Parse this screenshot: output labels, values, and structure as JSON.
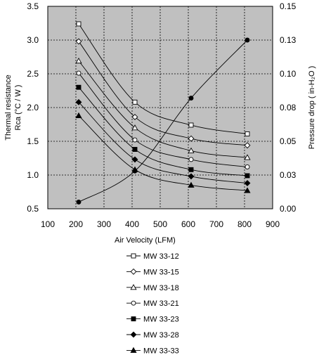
{
  "chart_data": {
    "type": "line",
    "xlabel": "Air Velocity (LFM)",
    "ylabel_left": [
      "Thermal resistance",
      "Rca (°C / W )"
    ],
    "ylabel_right": "Pressure drop ( in-H₂O )",
    "xlim": [
      100,
      900
    ],
    "x_ticks": [
      100,
      200,
      300,
      400,
      500,
      600,
      700,
      800,
      900
    ],
    "ylim_left": [
      0.5,
      3.5
    ],
    "y_ticks_left": [
      "0.5",
      "1.0",
      "1.5",
      "2.0",
      "2.5",
      "3.0",
      "3.5"
    ],
    "ylim_right": [
      0,
      0.15
    ],
    "y_ticks_right": [
      "0.00",
      "0.03",
      "0.05",
      "0.08",
      "0.10",
      "0.13",
      "0.15"
    ],
    "grid": true,
    "plot_background": "#c0c0c0",
    "legend_position": "bottom",
    "series": [
      {
        "name": "MW 33-12",
        "marker": "square-open",
        "axis": "left",
        "x": [
          210,
          410,
          610,
          810
        ],
        "y": [
          3.24,
          2.08,
          1.74,
          1.61
        ]
      },
      {
        "name": "MW 33-15",
        "marker": "diamond-open",
        "axis": "left",
        "x": [
          210,
          410,
          610,
          810
        ],
        "y": [
          2.98,
          1.86,
          1.54,
          1.44
        ]
      },
      {
        "name": "MW 33-18",
        "marker": "triangle-open",
        "axis": "left",
        "x": [
          210,
          410,
          610,
          810
        ],
        "y": [
          2.69,
          1.7,
          1.36,
          1.26
        ]
      },
      {
        "name": "MW 33-21",
        "marker": "circle-open",
        "axis": "left",
        "x": [
          210,
          410,
          610,
          810
        ],
        "y": [
          2.51,
          1.52,
          1.23,
          1.12
        ]
      },
      {
        "name": "MW 33-23",
        "marker": "square-filled",
        "axis": "left",
        "x": [
          210,
          410,
          610,
          810
        ],
        "y": [
          2.3,
          1.38,
          1.08,
          0.99
        ]
      },
      {
        "name": "MW 33-28",
        "marker": "diamond-filled",
        "axis": "left",
        "x": [
          210,
          410,
          610,
          810
        ],
        "y": [
          2.08,
          1.23,
          0.98,
          0.88
        ]
      },
      {
        "name": "MW 33-33",
        "marker": "triangle-filled",
        "axis": "left",
        "x": [
          210,
          410,
          610,
          810
        ],
        "y": [
          1.88,
          1.08,
          0.85,
          0.77
        ]
      }
    ],
    "pressure_series": {
      "marker": "circle-filled",
      "axis": "right",
      "x": [
        210,
        410,
        610,
        810
      ],
      "y": [
        0.005,
        0.028,
        0.082,
        0.125
      ]
    }
  }
}
